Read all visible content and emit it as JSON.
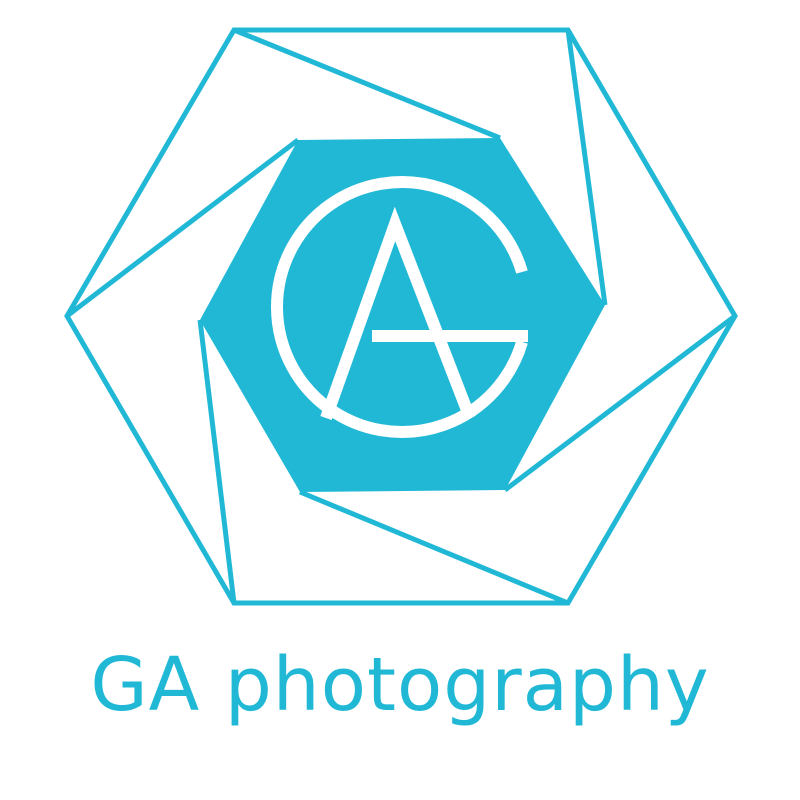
{
  "brand": {
    "name": "GA photography",
    "monogram": "GA",
    "accent_color": "#21B8D6",
    "background_color": "#FFFFFF"
  }
}
